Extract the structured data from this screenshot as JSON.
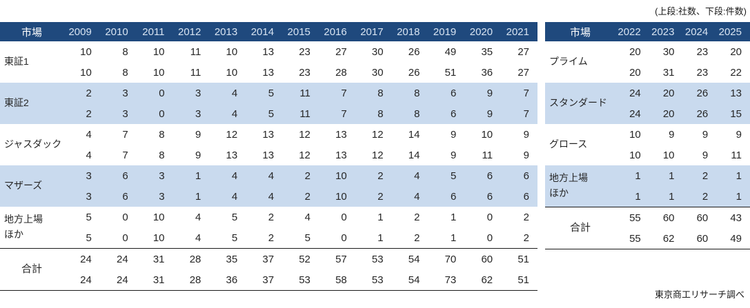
{
  "annotation": "(上段:社数、下段:件数)",
  "caption": "東京商工リサーチ調べ",
  "colors": {
    "header_bg": "#1F497D",
    "header_year_text": "#D8E4F2",
    "header_label_text": "#FFFFFF",
    "row_alt_bg": "#C9DAEE",
    "body_text": "#262626",
    "rule": "#1A1A1A"
  },
  "chart_data": [
    {
      "type": "table",
      "title": "市場別 上場企業数・件数 2009-2021",
      "header_label": "市場",
      "columns": [
        "2009",
        "2010",
        "2011",
        "2012",
        "2013",
        "2014",
        "2015",
        "2016",
        "2017",
        "2018",
        "2019",
        "2020",
        "2021"
      ],
      "rows": [
        {
          "label": "東証1",
          "shaded": false,
          "total": false,
          "upper": [
            10,
            8,
            10,
            11,
            10,
            13,
            23,
            27,
            30,
            26,
            49,
            35,
            27
          ],
          "lower": [
            10,
            8,
            10,
            11,
            10,
            13,
            23,
            28,
            30,
            26,
            51,
            36,
            27
          ]
        },
        {
          "label": "東証2",
          "shaded": true,
          "total": false,
          "upper": [
            2,
            3,
            0,
            3,
            4,
            5,
            11,
            7,
            8,
            8,
            6,
            9,
            7
          ],
          "lower": [
            2,
            3,
            0,
            3,
            4,
            5,
            11,
            7,
            8,
            8,
            6,
            9,
            7
          ]
        },
        {
          "label": "ジャスダック",
          "shaded": false,
          "total": false,
          "upper": [
            4,
            7,
            8,
            9,
            12,
            13,
            12,
            13,
            12,
            14,
            9,
            10,
            9
          ],
          "lower": [
            4,
            7,
            8,
            9,
            13,
            13,
            12,
            13,
            12,
            14,
            9,
            11,
            9
          ]
        },
        {
          "label": "マザーズ",
          "shaded": true,
          "total": false,
          "upper": [
            3,
            6,
            3,
            1,
            4,
            4,
            2,
            10,
            2,
            4,
            5,
            6,
            6
          ],
          "lower": [
            3,
            6,
            3,
            1,
            4,
            4,
            2,
            10,
            2,
            4,
            6,
            6,
            6
          ]
        },
        {
          "label": "地方上場\nほか",
          "shaded": false,
          "total": false,
          "upper": [
            5,
            0,
            10,
            4,
            5,
            2,
            4,
            0,
            1,
            2,
            1,
            0,
            2
          ],
          "lower": [
            5,
            0,
            10,
            4,
            5,
            2,
            5,
            0,
            1,
            2,
            1,
            0,
            2
          ]
        },
        {
          "label": "合計",
          "shaded": false,
          "total": true,
          "upper": [
            24,
            24,
            31,
            28,
            35,
            37,
            52,
            57,
            53,
            54,
            70,
            60,
            51
          ],
          "lower": [
            24,
            24,
            31,
            28,
            36,
            37,
            53,
            58,
            53,
            54,
            73,
            62,
            51
          ]
        }
      ]
    },
    {
      "type": "table",
      "title": "市場別 上場企業数・件数 2022-2025",
      "header_label": "市場",
      "columns": [
        "2022",
        "2023",
        "2024",
        "2025"
      ],
      "rows": [
        {
          "label": "プライム",
          "shaded": false,
          "total": false,
          "upper": [
            20,
            30,
            23,
            20
          ],
          "lower": [
            20,
            31,
            23,
            22
          ]
        },
        {
          "label": "スタンダード",
          "shaded": true,
          "total": false,
          "upper": [
            24,
            20,
            26,
            13
          ],
          "lower": [
            24,
            20,
            26,
            15
          ]
        },
        {
          "label": "グロース",
          "shaded": false,
          "total": false,
          "upper": [
            10,
            9,
            9,
            9
          ],
          "lower": [
            10,
            10,
            9,
            11
          ]
        },
        {
          "label": "地方上場\nほか",
          "shaded": true,
          "total": false,
          "upper": [
            1,
            1,
            2,
            1
          ],
          "lower": [
            1,
            1,
            2,
            1
          ]
        },
        {
          "label": "合計",
          "shaded": false,
          "total": true,
          "upper": [
            55,
            60,
            60,
            43
          ],
          "lower": [
            55,
            62,
            60,
            49
          ]
        }
      ]
    }
  ]
}
